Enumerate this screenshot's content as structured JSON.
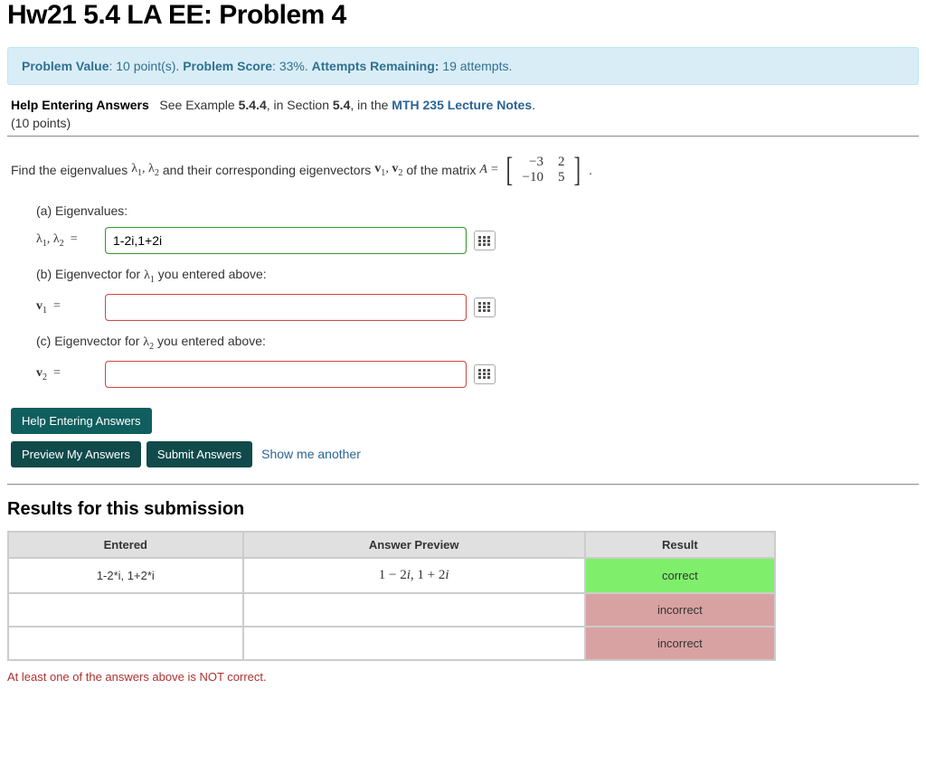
{
  "title": "Hw21 5.4 LA EE: Problem 4",
  "info": {
    "value_label": "Problem Value",
    "value": "10 point(s).",
    "score_label": "Problem Score",
    "score": "33%.",
    "attempts_label": "Attempts Remaining:",
    "attempts": "19 attempts."
  },
  "help": {
    "link_text": "Help Entering Answers",
    "see_text": "See Example",
    "example": "5.4.4",
    "in_section": ", in Section",
    "section": "5.4",
    "in_the": ", in the",
    "notes": "MTH 235 Lecture Notes",
    "period": "."
  },
  "points_text": "(10 points)",
  "problem": {
    "lead": "Find the eigenvalues",
    "lambdas": "λ₁, λ₂",
    "and_text": "and their corresponding eigenvectors",
    "vectors": "v₁, v₂",
    "of_text": "of the matrix",
    "A_eq": "A =",
    "matrix": [
      [
        "−3",
        "2"
      ],
      [
        "−10",
        "5"
      ]
    ],
    "tail": "."
  },
  "parts": {
    "a": {
      "head": "(a) Eigenvalues:",
      "label_html": "λ₁, λ₂  = ",
      "value": "1-2i,1+2i",
      "state": "correct"
    },
    "b": {
      "head_pre": "(b) Eigenvector for ",
      "head_mid": "λ₁",
      "head_post": " you entered above:",
      "label_html": "v₁  = ",
      "value": "",
      "state": "incorrect"
    },
    "c": {
      "head_pre": "(c) Eigenvector for ",
      "head_mid": "λ₂",
      "head_post": " you entered above:",
      "label_html": "v₂  = ",
      "value": "",
      "state": "incorrect"
    }
  },
  "buttons": {
    "help": "Help Entering Answers",
    "preview": "Preview My Answers",
    "submit": "Submit Answers",
    "show": "Show me another"
  },
  "results": {
    "heading": "Results for this submission",
    "cols": [
      "Entered",
      "Answer Preview",
      "Result"
    ],
    "col_widths": [
      "260px",
      "380px",
      "210px"
    ],
    "rows": [
      {
        "entered": "1-2*i, 1+2*i",
        "preview": "1 − 2i, 1 + 2i",
        "result": "correct",
        "class": "res-correct"
      },
      {
        "entered": "",
        "preview": "",
        "result": "incorrect",
        "class": "res-incorrect"
      },
      {
        "entered": "",
        "preview": "",
        "result": "incorrect",
        "class": "res-incorrect"
      }
    ],
    "error": "At least one of the answers above is NOT correct."
  },
  "colors": {
    "info_bg": "#d9edf7",
    "info_border": "#bce8f1",
    "info_text": "#31708f",
    "btn_bg": "#0f5f5f",
    "correct_border": "#3c9a3c",
    "incorrect_border": "#d24b4b",
    "res_correct_bg": "#7fef6b",
    "res_incorrect_bg": "#d9a2a2",
    "error_text": "#b03030"
  }
}
